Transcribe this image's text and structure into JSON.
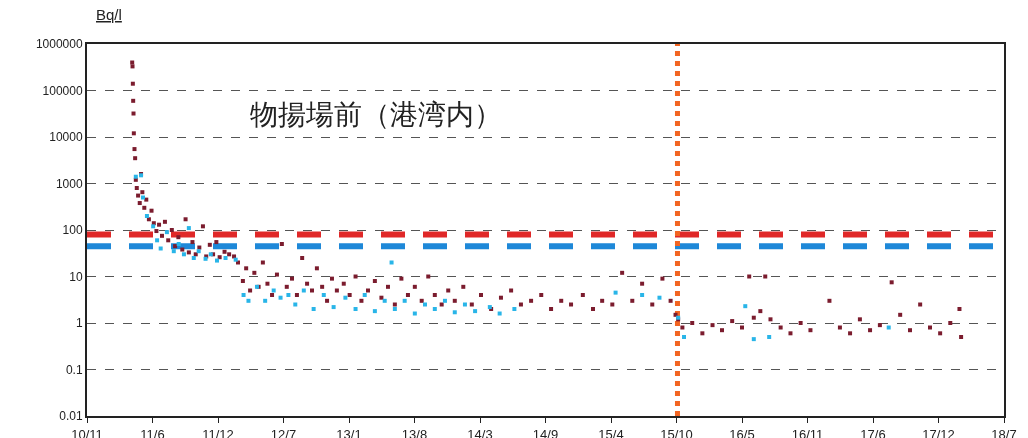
{
  "chart_data": {
    "type": "scatter",
    "title": "物揚場前（港湾内）",
    "ylabel": "Bq/l",
    "log": "y",
    "grid": "y",
    "marker": "square",
    "ylim": [
      0.01,
      1000000
    ],
    "yticks": [
      0.01,
      0.1,
      1,
      10,
      100,
      1000,
      10000,
      100000,
      1000000
    ],
    "xlim": [
      "2010-11-18",
      "2018-07-19"
    ],
    "xticks": [
      {
        "value": "2010-11-18",
        "label": "10/11"
      },
      {
        "value": "2011-06-06",
        "label": "11/6"
      },
      {
        "value": "2011-12-23",
        "label": "11/12"
      },
      {
        "value": "2012-07-10",
        "label": "12/7"
      },
      {
        "value": "2013-01-26",
        "label": "13/1"
      },
      {
        "value": "2013-08-14",
        "label": "13/8"
      },
      {
        "value": "2014-03-02",
        "label": "14/3"
      },
      {
        "value": "2014-09-18",
        "label": "14/9"
      },
      {
        "value": "2015-04-06",
        "label": "15/4"
      },
      {
        "value": "2015-10-23",
        "label": "15/10"
      },
      {
        "value": "2016-05-10",
        "label": "16/5"
      },
      {
        "value": "2016-11-26",
        "label": "16/11"
      },
      {
        "value": "2017-06-14",
        "label": "17/6"
      },
      {
        "value": "2017-12-31",
        "label": "17/12"
      },
      {
        "value": "2018-07-19",
        "label": "18/7"
      }
    ],
    "series": [
      {
        "color": "#7b1c2e",
        "x": [
          "2011-04-05",
          "2011-04-06",
          "2011-04-07",
          "2011-04-08",
          "2011-04-09",
          "2011-04-10",
          "2011-04-12",
          "2011-04-14",
          "2011-04-16",
          "2011-04-19",
          "2011-04-23",
          "2011-04-28",
          "2011-05-02",
          "2011-05-06",
          "2011-05-12",
          "2011-05-18",
          "2011-05-26",
          "2011-06-03",
          "2011-06-10",
          "2011-06-18",
          "2011-06-26",
          "2011-07-05",
          "2011-07-14",
          "2011-07-24",
          "2011-08-04",
          "2011-08-14",
          "2011-08-24",
          "2011-09-05",
          "2011-09-15",
          "2011-09-25",
          "2011-10-06",
          "2011-10-16",
          "2011-10-27",
          "2011-11-07",
          "2011-11-17",
          "2011-11-28",
          "2011-12-08",
          "2011-12-18",
          "2011-12-28",
          "2012-01-12",
          "2012-01-26",
          "2012-02-10",
          "2012-02-22",
          "2012-03-08",
          "2012-03-18",
          "2012-03-30",
          "2012-04-12",
          "2012-04-25",
          "2012-05-08",
          "2012-05-22",
          "2012-06-05",
          "2012-06-20",
          "2012-07-05",
          "2012-07-20",
          "2012-08-05",
          "2012-08-20",
          "2012-09-05",
          "2012-09-20",
          "2012-10-05",
          "2012-10-20",
          "2012-11-05",
          "2012-11-20",
          "2012-12-05",
          "2012-12-20",
          "2013-01-10",
          "2013-01-28",
          "2013-02-15",
          "2013-03-05",
          "2013-03-25",
          "2013-04-15",
          "2013-05-05",
          "2013-05-25",
          "2013-06-15",
          "2013-07-05",
          "2013-07-25",
          "2013-08-15",
          "2013-09-05",
          "2013-09-25",
          "2013-10-15",
          "2013-11-05",
          "2013-11-25",
          "2013-12-15",
          "2014-01-10",
          "2014-02-05",
          "2014-03-05",
          "2014-04-05",
          "2014-05-05",
          "2014-06-05",
          "2014-07-05",
          "2014-08-05",
          "2014-09-05",
          "2014-10-05",
          "2014-11-05",
          "2014-12-05",
          "2015-01-10",
          "2015-02-10",
          "2015-03-10",
          "2015-04-10",
          "2015-05-10",
          "2015-06-10",
          "2015-07-10",
          "2015-08-10",
          "2015-09-10",
          "2015-10-05",
          "2015-10-20",
          "2015-10-28",
          "2015-11-10",
          "2015-12-10",
          "2016-01-10",
          "2016-02-10",
          "2016-03-10",
          "2016-04-10",
          "2016-05-10",
          "2016-06-01",
          "2016-06-15",
          "2016-07-05",
          "2016-07-20",
          "2016-08-05",
          "2016-09-05",
          "2016-10-05",
          "2016-11-05",
          "2016-12-05",
          "2017-02-01",
          "2017-03-05",
          "2017-04-05",
          "2017-05-05",
          "2017-06-05",
          "2017-07-05",
          "2017-08-10",
          "2017-09-05",
          "2017-10-05",
          "2017-11-05",
          "2017-12-05",
          "2018-01-05",
          "2018-02-05",
          "2018-03-05",
          "2018-03-10"
        ],
        "values": [
          400000,
          330000,
          140000,
          60000,
          32000,
          12000,
          5500,
          3500,
          1200,
          800,
          550,
          380,
          1600,
          650,
          300,
          450,
          170,
          260,
          140,
          95,
          130,
          75,
          150,
          60,
          100,
          45,
          70,
          38,
          170,
          33,
          55,
          30,
          42,
          120,
          27,
          48,
          30,
          55,
          26,
          34,
          30,
          27,
          20,
          8,
          15,
          5,
          12,
          6,
          20,
          7,
          4,
          11,
          50,
          6,
          9,
          4,
          25,
          7,
          5,
          15,
          6,
          3,
          9,
          5,
          7,
          4,
          10,
          3,
          5,
          8,
          3.5,
          6,
          2.5,
          9,
          4,
          6,
          3,
          10,
          4,
          2.5,
          5,
          3,
          6,
          2.5,
          4,
          2,
          3.5,
          5,
          2.5,
          3,
          4,
          2,
          3,
          2.5,
          4,
          2,
          3,
          2.5,
          12,
          3,
          7,
          2.5,
          9,
          3,
          1.5,
          1.2,
          0.8,
          1,
          0.6,
          0.9,
          0.7,
          1.1,
          0.8,
          10,
          1.3,
          1.8,
          10,
          1.2,
          0.8,
          0.6,
          1,
          0.7,
          3,
          0.8,
          0.6,
          1.2,
          0.7,
          0.9,
          7.5,
          1.5,
          0.7,
          2.5,
          0.8,
          0.6,
          1,
          2,
          0.5
        ]
      },
      {
        "color": "#29b5e8",
        "x": [
          "2011-04-16",
          "2011-05-02",
          "2011-05-08",
          "2011-05-20",
          "2011-06-08",
          "2011-06-20",
          "2011-07-01",
          "2011-07-20",
          "2011-08-10",
          "2011-08-25",
          "2011-09-10",
          "2011-09-25",
          "2011-10-10",
          "2011-10-25",
          "2011-11-15",
          "2011-12-01",
          "2011-12-20",
          "2012-01-15",
          "2012-02-15",
          "2012-03-10",
          "2012-03-25",
          "2012-04-20",
          "2012-05-15",
          "2012-06-10",
          "2012-07-01",
          "2012-07-25",
          "2012-08-15",
          "2012-09-10",
          "2012-10-10",
          "2012-11-10",
          "2012-12-10",
          "2013-01-15",
          "2013-02-15",
          "2013-03-15",
          "2013-04-15",
          "2013-05-15",
          "2013-06-05",
          "2013-06-15",
          "2013-07-15",
          "2013-08-15",
          "2013-09-15",
          "2013-10-15",
          "2013-11-15",
          "2013-12-15",
          "2014-01-15",
          "2014-02-15",
          "2014-04-01",
          "2014-05-01",
          "2014-06-15",
          "2015-04-20",
          "2015-07-10",
          "2015-09-01",
          "2015-10-28",
          "2015-11-15",
          "2016-05-20",
          "2016-06-15",
          "2016-08-01",
          "2017-08-01"
        ],
        "values": [
          1400,
          1500,
          500,
          200,
          120,
          60,
          40,
          90,
          35,
          50,
          30,
          110,
          25,
          35,
          24,
          30,
          22,
          25,
          23,
          4,
          3,
          6,
          3,
          5,
          3.5,
          4,
          2.5,
          5,
          2,
          4,
          2.2,
          3.5,
          2,
          4,
          1.8,
          3,
          20,
          2,
          3,
          1.6,
          2.5,
          2,
          3,
          1.7,
          2.5,
          1.8,
          2.2,
          1.6,
          2,
          4.5,
          4,
          3.5,
          1.3,
          0.5,
          2.3,
          0.45,
          0.5,
          0.8
        ]
      }
    ],
    "ref_lines": [
      {
        "axis": "y",
        "value": 80,
        "color": "#e02828",
        "line_style": "dashed"
      },
      {
        "axis": "y",
        "value": 45,
        "color": "#1e88d8",
        "line_style": "dashed"
      },
      {
        "axis": "x",
        "value": "2015-10-26",
        "color": "#f26522",
        "line_style": "dotted"
      }
    ]
  }
}
